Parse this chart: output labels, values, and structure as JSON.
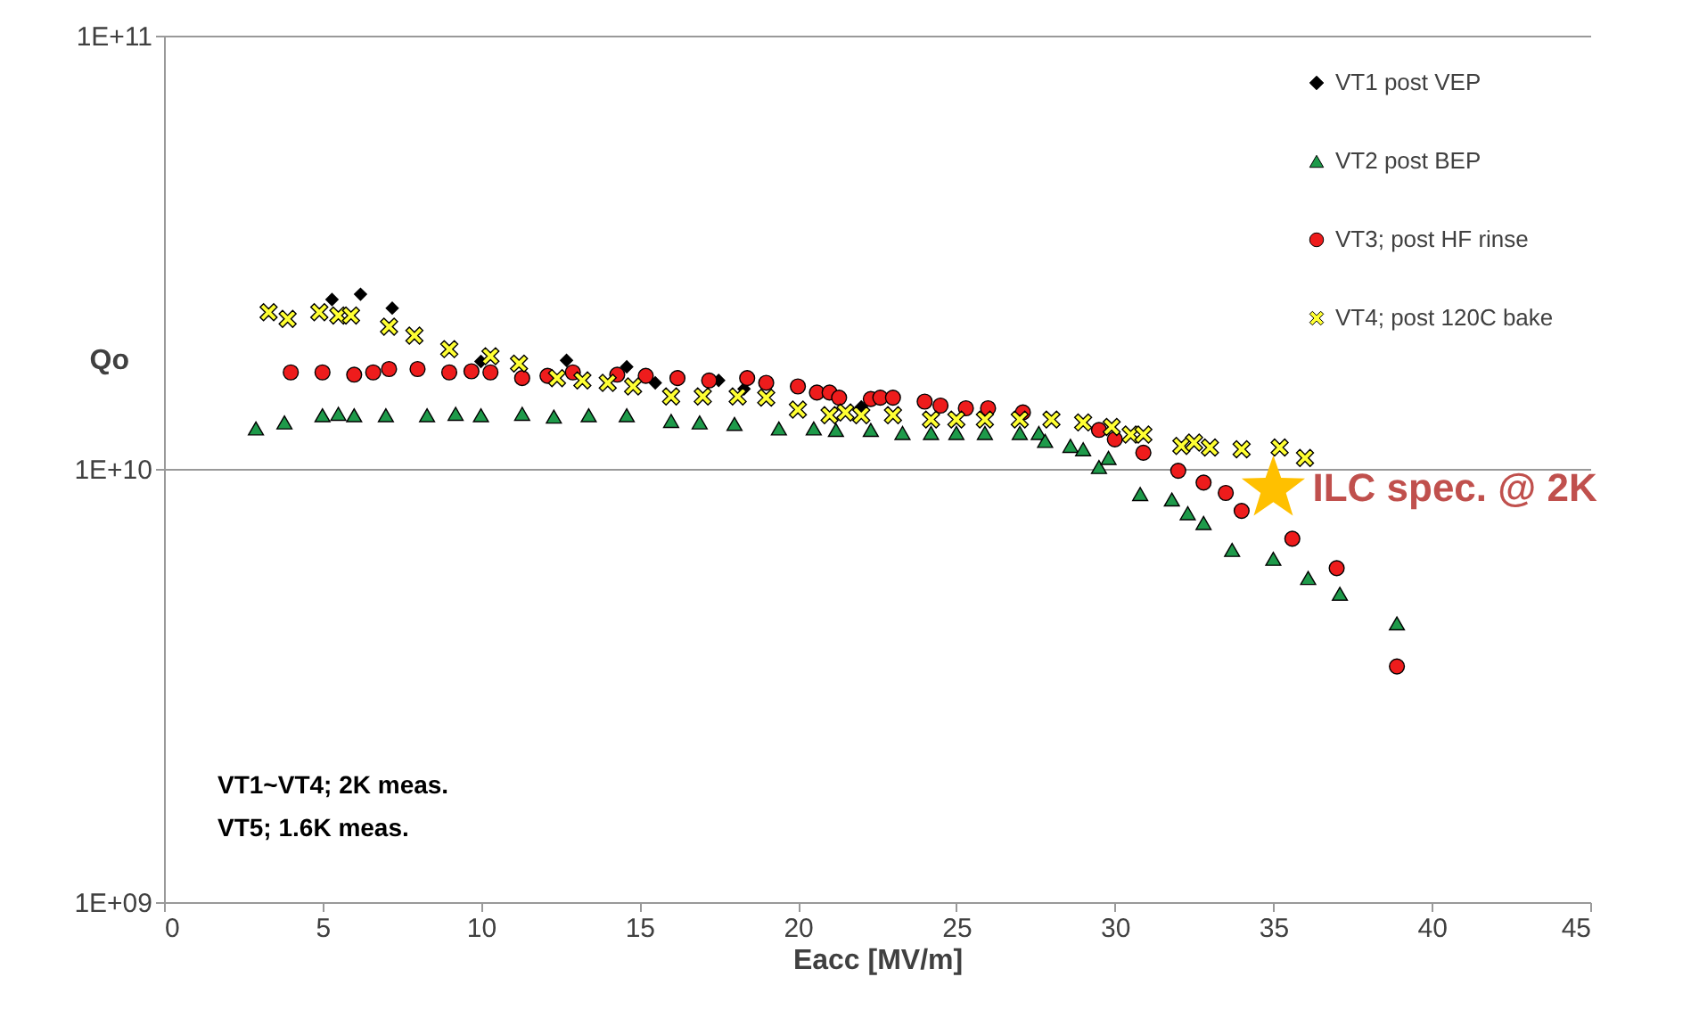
{
  "chart_data": {
    "type": "scatter",
    "xlabel": "Eacc [MV/m]",
    "ylabel": "Qo",
    "xlim": [
      0,
      45
    ],
    "xticks": [
      0,
      5,
      10,
      15,
      20,
      25,
      30,
      35,
      40,
      45
    ],
    "ylim": [
      1000000000,
      100000000000
    ],
    "log": true,
    "yticks": [
      {
        "value": 1000000000,
        "label": "1E+09"
      },
      {
        "value": 10000000000,
        "label": "1E+10"
      },
      {
        "value": 100000000000,
        "label": "1E+11"
      }
    ],
    "grid": "y",
    "legend": "top right",
    "series": [
      {
        "name": "VT1 post VEP",
        "color": "#000000",
        "marker": "diamond",
        "x": [
          5.3,
          6.2,
          7.2,
          10.0,
          12.7,
          14.6,
          15.5,
          17.5,
          18.3,
          22.0
        ],
        "values": [
          24600000000.0,
          25300000000.0,
          23500000000.0,
          17700000000.0,
          17800000000.0,
          17200000000.0,
          15800000000.0,
          16000000000.0,
          15300000000.0,
          13900000000.0
        ]
      },
      {
        "name": "VT2 post BEP",
        "color": "#1e9a4a",
        "marker": "triangle",
        "x": [
          2.9,
          3.8,
          5.0,
          5.5,
          6.0,
          7.0,
          8.3,
          9.2,
          10.0,
          11.3,
          12.3,
          13.4,
          14.6,
          16.0,
          16.9,
          18.0,
          19.4,
          20.5,
          21.2,
          22.3,
          23.3,
          24.2,
          25.0,
          25.9,
          27.0,
          27.6,
          27.8,
          28.6,
          29.0,
          29.5,
          29.8,
          30.8,
          31.8,
          32.3,
          32.8,
          33.7,
          35.0,
          36.1,
          37.1,
          38.9
        ],
        "values": [
          12400000000.0,
          12800000000.0,
          13300000000.0,
          13400000000.0,
          13300000000.0,
          13300000000.0,
          13300000000.0,
          13400000000.0,
          13300000000.0,
          13400000000.0,
          13200000000.0,
          13300000000.0,
          13300000000.0,
          12900000000.0,
          12800000000.0,
          12700000000.0,
          12400000000.0,
          12400000000.0,
          12300000000.0,
          12300000000.0,
          12100000000.0,
          12100000000.0,
          12100000000.0,
          12100000000.0,
          12100000000.0,
          12100000000.0,
          11600000000.0,
          11300000000.0,
          11100000000.0,
          10100000000.0,
          10600000000.0,
          8750000000.0,
          8500000000.0,
          7900000000.0,
          7500000000.0,
          6500000000.0,
          6200000000.0,
          5600000000.0,
          5150000000.0,
          4400000000.0
        ]
      },
      {
        "name": "VT3; post HF rinse",
        "color": "#ee1c1c",
        "marker": "circle",
        "x": [
          4.0,
          5.0,
          6.0,
          6.6,
          7.1,
          8.0,
          9.0,
          9.7,
          10.3,
          11.3,
          12.1,
          12.9,
          14.3,
          15.2,
          16.2,
          17.2,
          18.4,
          19.0,
          20.0,
          20.6,
          21.0,
          21.3,
          22.3,
          22.6,
          23.0,
          24.0,
          24.5,
          25.3,
          26.0,
          26.9,
          27.1,
          29.5,
          30.0,
          30.9,
          32.0,
          32.8,
          33.5,
          34.0,
          35.6,
          37.0,
          38.9
        ],
        "values": [
          16700000000.0,
          16700000000.0,
          16500000000.0,
          16700000000.0,
          17000000000.0,
          17000000000.0,
          16700000000.0,
          16800000000.0,
          16700000000.0,
          16200000000.0,
          16400000000.0,
          16700000000.0,
          16500000000.0,
          16400000000.0,
          16200000000.0,
          16000000000.0,
          16200000000.0,
          15800000000.0,
          15500000000.0,
          15000000000.0,
          15000000000.0,
          14600000000.0,
          14500000000.0,
          14600000000.0,
          14600000000.0,
          14300000000.0,
          14000000000.0,
          13800000000.0,
          13800000000.0,
          null,
          13500000000.0,
          12300000000.0,
          11700000000.0,
          10900000000.0,
          9900000000.0,
          9300000000.0,
          8800000000.0,
          8000000000.0,
          6900000000.0,
          5900000000.0,
          3500000000.0
        ]
      },
      {
        "name": "VT4; post 120C bake",
        "color": "#ffff33",
        "marker": "cross",
        "x": [
          3.3,
          3.9,
          4.9,
          5.5,
          5.9,
          7.1,
          7.9,
          9.0,
          10.3,
          11.2,
          12.4,
          13.2,
          14.0,
          14.8,
          16.0,
          17.0,
          18.1,
          19.0,
          20.0,
          21.0,
          21.5,
          22.0,
          23.0,
          24.2,
          25.0,
          25.9,
          27.0,
          28.0,
          29.0,
          29.9,
          30.5,
          30.9,
          32.1,
          32.5,
          33.0,
          34.0,
          35.2,
          36.0
        ],
        "values": [
          23000000000.0,
          22200000000.0,
          23000000000.0,
          22600000000.0,
          22600000000.0,
          21300000000.0,
          20300000000.0,
          18900000000.0,
          18200000000.0,
          17500000000.0,
          16200000000.0,
          16000000000.0,
          15800000000.0,
          15500000000.0,
          14700000000.0,
          14700000000.0,
          14700000000.0,
          14600000000.0,
          13700000000.0,
          13300000000.0,
          13500000000.0,
          13300000000.0,
          13300000000.0,
          13000000000.0,
          13000000000.0,
          13000000000.0,
          13000000000.0,
          13000000000.0,
          12800000000.0,
          12500000000.0,
          12000000000.0,
          12000000000.0,
          11300000000.0,
          11500000000.0,
          11200000000.0,
          11100000000.0,
          11200000000.0,
          10600000000.0
        ]
      },
      {
        "color": "#ffc000",
        "marker": "star",
        "x": [
          35.0
        ],
        "values": [
          9000000000.0
        ]
      }
    ],
    "annotations": [
      {
        "text": "ILC spec. @ 2K",
        "x": 35.0,
        "y": 9000000000.0
      },
      "VT1~VT4; 2K meas.",
      "VT5; 1.6K meas."
    ]
  }
}
